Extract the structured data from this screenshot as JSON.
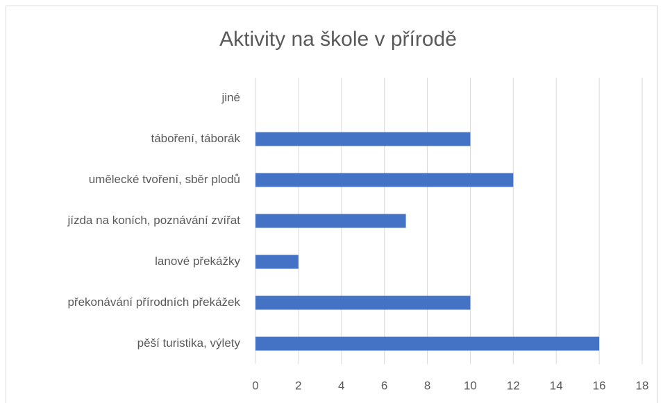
{
  "chart_data": {
    "type": "barh",
    "title": "Aktivity na škole v přírodě",
    "categories": [
      "jiné",
      "táboření, táborák",
      "umělecké tvoření, sběr plodů",
      "jízda na koních, poznávání zvířat",
      "lanové překážky",
      "překonávání přírodních překážek",
      "pěší turistika, výlety"
    ],
    "values": [
      0,
      10,
      12,
      7,
      2,
      10,
      16
    ],
    "color": "#4472c4",
    "xlim": [
      0,
      18
    ],
    "xticks": [
      0,
      2,
      4,
      6,
      8,
      10,
      12,
      14,
      16,
      18
    ],
    "grid": true
  }
}
